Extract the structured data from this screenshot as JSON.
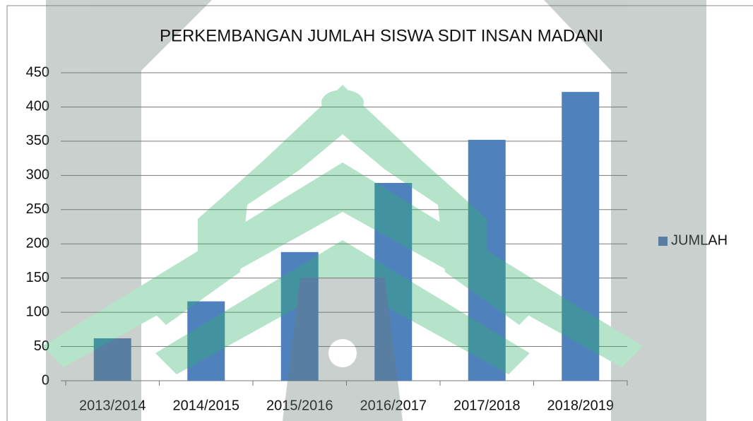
{
  "chart_data": {
    "type": "bar",
    "title": "PERKEMBANGAN JUMLAH SISWA SDIT INSAN MADANI",
    "categories": [
      "2013/2014",
      "2014/2015",
      "2015/2016",
      "2016/2017",
      "2017/2018",
      "2018/2019"
    ],
    "series": [
      {
        "name": "JUMLAH",
        "color": "#4f81bd",
        "values": [
          62,
          116,
          188,
          289,
          352,
          422
        ]
      }
    ],
    "ylim": [
      0,
      450
    ],
    "yticks": [
      0,
      50,
      100,
      150,
      200,
      250,
      300,
      350,
      400,
      450
    ],
    "grid": true,
    "legend": "right"
  }
}
